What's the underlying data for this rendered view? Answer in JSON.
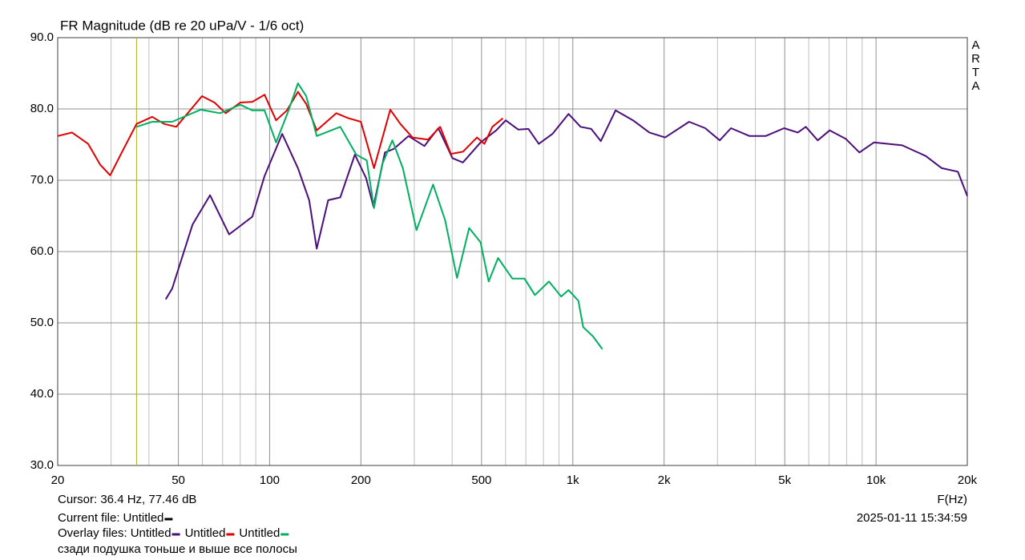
{
  "chart_data": {
    "type": "line",
    "title": "FR Magnitude (dB re 20 uPa/V - 1/6 oct)",
    "x_label": "F(Hz)",
    "side_label": "ARTA",
    "log_x": true,
    "grid": true,
    "xlim": [
      20,
      20000
    ],
    "ylim": [
      30,
      90
    ],
    "xticks": [
      20,
      50,
      100,
      200,
      500,
      {
        "value": 1000,
        "label": "1k"
      },
      {
        "value": 2000,
        "label": "2k"
      },
      {
        "value": 5000,
        "label": "5k"
      },
      {
        "value": 10000,
        "label": "10k"
      },
      {
        "value": 20000,
        "label": "20k"
      }
    ],
    "xminor": [
      30,
      40,
      60,
      70,
      80,
      90,
      300,
      400,
      600,
      700,
      800,
      900,
      3000,
      4000,
      6000,
      7000,
      8000,
      9000
    ],
    "yticks": [
      {
        "value": 30,
        "label": "30.0"
      },
      {
        "value": 40,
        "label": "40.0"
      },
      {
        "value": 50,
        "label": "50.0"
      },
      {
        "value": 60,
        "label": "60.0"
      },
      {
        "value": 70,
        "label": "70.0"
      },
      {
        "value": 80,
        "label": "80.0"
      },
      {
        "value": 90,
        "label": "90.0"
      }
    ],
    "cursor": {
      "x": 36.4,
      "label": "Cursor: 36.4 Hz, 77.46 dB",
      "color": "#b0b020"
    },
    "current_file": {
      "label": "Current file:",
      "name": "Untitled",
      "color": "#000000"
    },
    "overlay_label": "Overlay files:",
    "timestamp": "2025-01-11  15:34:59",
    "note": "сзади  подушка тоньше и выше все полосы",
    "series": [
      {
        "name": "Untitled",
        "color": "#4b0f7a",
        "x": [
          45.4,
          47.7,
          55.7,
          63.6,
          73.5,
          80,
          87.7,
          96.2,
          110,
          124,
          135,
          143,
          156,
          171,
          191,
          208,
          220,
          240,
          257,
          287,
          324,
          360,
          401,
          434,
          496,
          559,
          601,
          661,
          714,
          772,
          857,
          968,
          1061,
          1150,
          1237,
          1383,
          1580,
          1788,
          2015,
          2419,
          2733,
          3051,
          3324,
          3828,
          4326,
          4976,
          5520,
          5867,
          6423,
          7036,
          7953,
          8818,
          9840,
          12200,
          14580,
          16470,
          18610,
          20000
        ],
        "values": [
          53.3,
          54.8,
          63.8,
          67.9,
          62.4,
          63.6,
          64.9,
          70.6,
          76.5,
          71.7,
          67.2,
          60.4,
          67.2,
          67.6,
          73.6,
          70.3,
          66.3,
          73.9,
          74.4,
          76.2,
          74.8,
          77.3,
          73.1,
          72.5,
          75.3,
          77.0,
          78.4,
          77.1,
          77.2,
          75.1,
          76.5,
          79.3,
          77.5,
          77.2,
          75.5,
          79.8,
          78.4,
          76.7,
          76.0,
          78.2,
          77.3,
          75.6,
          77.3,
          76.2,
          76.2,
          77.3,
          76.7,
          77.5,
          75.6,
          77.0,
          75.8,
          73.9,
          75.3,
          74.9,
          73.4,
          71.7,
          71.2,
          67.8
        ]
      },
      {
        "name": "Untitled",
        "color": "#e00000",
        "x": [
          20,
          22.3,
          25.2,
          27.6,
          29.8,
          32.1,
          36.4,
          41,
          44.9,
          49.2,
          53.9,
          59.8,
          65.8,
          71.6,
          80,
          87.7,
          96.2,
          105,
          114,
          124,
          132,
          143,
          166,
          182,
          200,
          221,
          250,
          270,
          296,
          333,
          365,
          396,
          434,
          483,
          511,
          543,
          588
        ],
        "values": [
          76.2,
          76.7,
          75.1,
          72.2,
          70.7,
          73.4,
          77.9,
          78.9,
          77.9,
          77.5,
          79.5,
          81.8,
          80.9,
          79.4,
          80.9,
          81.0,
          82.0,
          78.4,
          79.8,
          82.4,
          80.7,
          77.0,
          79.4,
          78.7,
          78.2,
          71.7,
          79.9,
          77.9,
          76.0,
          75.7,
          77.5,
          73.7,
          74.0,
          76.0,
          75.1,
          77.5,
          78.7
        ]
      },
      {
        "name": "Untitled",
        "color": "#00b060",
        "x": [
          36.4,
          41,
          47.7,
          59.2,
          68.6,
          80,
          87.7,
          96.2,
          105,
          115,
          124,
          132,
          143,
          171,
          193,
          209,
          221,
          235,
          254,
          275,
          305,
          346,
          379,
          415,
          455,
          496,
          528,
          567,
          632,
          693,
          750,
          834,
          915,
          968,
          1043,
          1082,
          1165,
          1252
        ],
        "values": [
          77.5,
          78.2,
          78.2,
          79.9,
          79.4,
          80.6,
          79.8,
          79.8,
          75.3,
          79.6,
          83.6,
          81.8,
          76.2,
          77.5,
          73.6,
          72.8,
          66.1,
          72.2,
          75.6,
          71.7,
          63.0,
          69.4,
          64.4,
          56.3,
          63.3,
          61.3,
          55.8,
          59.1,
          56.2,
          56.2,
          53.9,
          55.8,
          53.7,
          54.6,
          53.1,
          49.4,
          48.1,
          46.3
        ]
      }
    ]
  }
}
